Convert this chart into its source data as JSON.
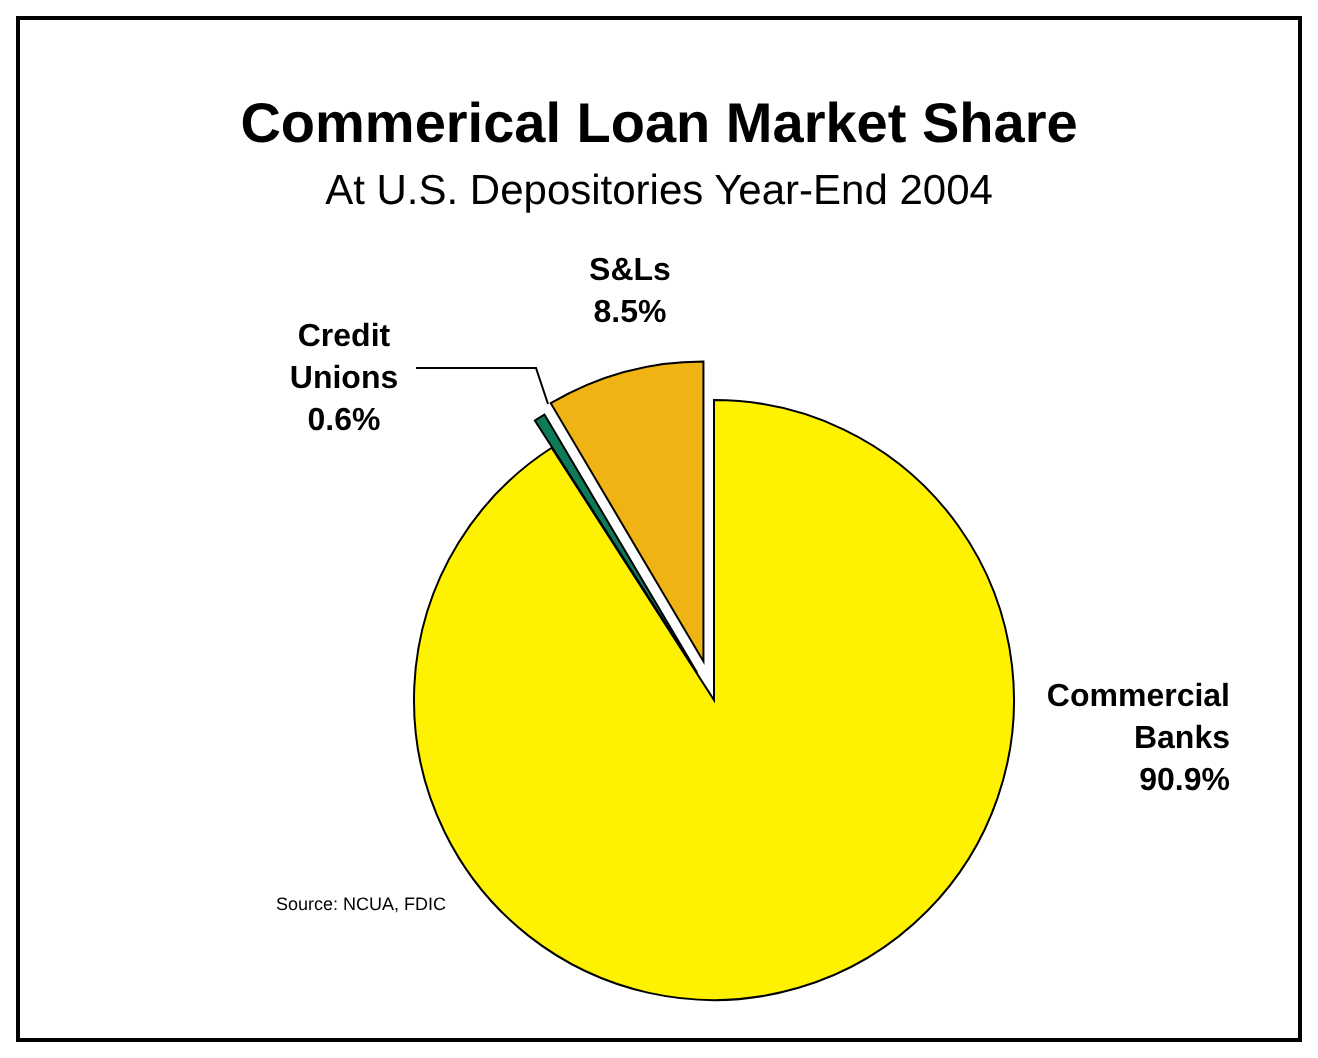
{
  "chart_data": {
    "type": "pie",
    "title": "Commerical Loan Market Share",
    "subtitle": "At U.S. Depositories Year-End 2004",
    "categories": [
      "Commercial Banks",
      "Credit Unions",
      "S&Ls"
    ],
    "values": [
      90.9,
      0.6,
      8.5
    ],
    "colors": [
      "#fff200",
      "#0f7a5a",
      "#efb314"
    ],
    "value_labels": [
      "90.9%",
      "0.6%",
      "8.5%"
    ],
    "annotations": [
      "Source: NCUA, FDIC"
    ],
    "legend": false
  }
}
